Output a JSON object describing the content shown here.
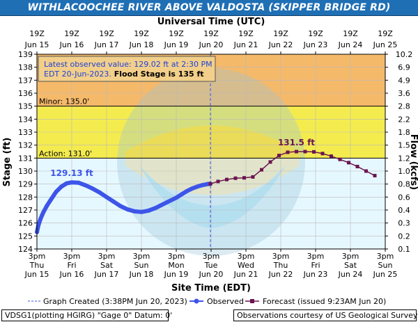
{
  "page_title": "WITHLACOOCHEE RIVER ABOVE VALDOSTA (SKIPPER BRIDGE RD)",
  "footer": {
    "station": "VDSG1(plotting HGIRG) \"Gage 0\" Datum: 0'",
    "credit": "Observations courtesy of US Geological Survey"
  },
  "colors": {
    "title_bg": "#1f6fb5",
    "moderate_band": "#f5b96a",
    "minor_band": "#f4ec4f",
    "normal_band": "#e6f8ff",
    "observed": "#3d55e8",
    "forecast": "#6b1451",
    "created_line": "#3d55e8"
  },
  "chart_data": {
    "type": "line",
    "title": "WITHLACOOCHEE RIVER ABOVE VALDOSTA (SKIPPER BRIDGE RD)",
    "top_axis_title": "Universal Time (UTC)",
    "xlabel": "Site Time (EDT)",
    "ylabel": "Stage (ft)",
    "y2label": "Flow (kcfs)",
    "ylim": [
      124,
      139
    ],
    "xlim": [
      0,
      10
    ],
    "grid": true,
    "bottom_ticks": [
      {
        "x": 0,
        "l1": "3pm",
        "l2": "Thu",
        "l3": "Jun 15"
      },
      {
        "x": 1,
        "l1": "3pm",
        "l2": "Fri",
        "l3": "Jun 16"
      },
      {
        "x": 2,
        "l1": "3pm",
        "l2": "Sat",
        "l3": "Jun 17"
      },
      {
        "x": 3,
        "l1": "3pm",
        "l2": "Sun",
        "l3": "Jun 18"
      },
      {
        "x": 4,
        "l1": "3pm",
        "l2": "Mon",
        "l3": "Jun 19"
      },
      {
        "x": 5,
        "l1": "3pm",
        "l2": "Tue",
        "l3": "Jun 20"
      },
      {
        "x": 6,
        "l1": "3pm",
        "l2": "Wed",
        "l3": "Jun 21"
      },
      {
        "x": 7,
        "l1": "3pm",
        "l2": "Thu",
        "l3": "Jun 22"
      },
      {
        "x": 8,
        "l1": "3pm",
        "l2": "Fri",
        "l3": "Jun 23"
      },
      {
        "x": 9,
        "l1": "3pm",
        "l2": "Sat",
        "l3": "Jun 24"
      },
      {
        "x": 10,
        "l1": "3pm",
        "l2": "Sun",
        "l3": "Jun 25"
      }
    ],
    "top_ticks": [
      {
        "x": 0,
        "l1": "19Z",
        "l2": "Jun 15"
      },
      {
        "x": 1,
        "l1": "19Z",
        "l2": "Jun 16"
      },
      {
        "x": 2,
        "l1": "19Z",
        "l2": "Jun 17"
      },
      {
        "x": 3,
        "l1": "19Z",
        "l2": "Jun 18"
      },
      {
        "x": 4,
        "l1": "19Z",
        "l2": "Jun 19"
      },
      {
        "x": 5,
        "l1": "19Z",
        "l2": "Jun 20"
      },
      {
        "x": 6,
        "l1": "19Z",
        "l2": "Jun 21"
      },
      {
        "x": 7,
        "l1": "19Z",
        "l2": "Jun 22"
      },
      {
        "x": 8,
        "l1": "19Z",
        "l2": "Jun 23"
      },
      {
        "x": 9,
        "l1": "19Z",
        "l2": "Jun 24"
      },
      {
        "x": 10,
        "l1": "19Z",
        "l2": "Jun 25"
      }
    ],
    "stage_ticks": [
      124,
      125,
      126,
      127,
      128,
      129,
      130,
      131,
      132,
      133,
      134,
      135,
      136,
      137,
      138,
      139
    ],
    "flow_ticks": [
      {
        "stage": 124,
        "label": "0.1"
      },
      {
        "stage": 125,
        "label": "0.2"
      },
      {
        "stage": 126,
        "label": "0.3"
      },
      {
        "stage": 127,
        "label": "0.4"
      },
      {
        "stage": 128,
        "label": "0.6"
      },
      {
        "stage": 129,
        "label": "0.8"
      },
      {
        "stage": 130,
        "label": "1.0"
      },
      {
        "stage": 131,
        "label": "1.2"
      },
      {
        "stage": 132,
        "label": "1.5"
      },
      {
        "stage": 133,
        "label": "1.8"
      },
      {
        "stage": 134,
        "label": "2.2"
      },
      {
        "stage": 135,
        "label": "2.8"
      },
      {
        "stage": 136,
        "label": "3.6"
      },
      {
        "stage": 137,
        "label": "4.9"
      },
      {
        "stage": 138,
        "label": "6.9"
      },
      {
        "stage": 139,
        "label": "10.2"
      }
    ],
    "bands": [
      {
        "name": "moderate",
        "from": 135,
        "to": 139
      },
      {
        "name": "minor",
        "from": 131,
        "to": 135
      },
      {
        "name": "normal",
        "from": 124,
        "to": 131
      }
    ],
    "flood_lines": [
      {
        "label": "Minor: 135.0'",
        "stage": 135
      },
      {
        "label": "Action: 131.0'",
        "stage": 131
      }
    ],
    "info_box": {
      "line1": "Latest observed value: 129.02 ft at 2:30 PM",
      "line2": "EDT 20-Jun-2023.",
      "line2_bold": " Flood Stage is 135 ft"
    },
    "annotations": [
      {
        "label": "129.13 ft",
        "series": "Observed"
      },
      {
        "label": "131.5 ft",
        "series": "Forecast"
      }
    ],
    "observed": {
      "name": "Observed",
      "x": [
        0,
        0.04,
        0.1,
        0.18,
        0.28,
        0.4,
        0.55,
        0.7,
        0.85,
        1.0,
        1.2,
        1.4,
        1.6,
        1.8,
        2.0,
        2.2,
        2.4,
        2.6,
        2.8,
        3.0,
        3.2,
        3.4,
        3.55,
        3.7,
        3.85,
        4.0,
        4.15,
        4.3,
        4.45,
        4.6,
        4.75,
        4.9,
        4.98
      ],
      "y": [
        125.3,
        125.8,
        126.3,
        126.8,
        127.3,
        127.8,
        128.4,
        128.8,
        129.05,
        129.13,
        129.1,
        128.9,
        128.65,
        128.35,
        128.0,
        127.65,
        127.3,
        127.05,
        126.9,
        126.85,
        126.95,
        127.15,
        127.35,
        127.55,
        127.75,
        127.95,
        128.2,
        128.45,
        128.65,
        128.8,
        128.92,
        129.0,
        129.02
      ]
    },
    "forecast": {
      "name": "Forecast (issued 9:23AM Jun 20)",
      "x": [
        4.98,
        5.2,
        5.45,
        5.7,
        5.95,
        6.2,
        6.45,
        6.7,
        6.95,
        7.2,
        7.45,
        7.7,
        7.95,
        8.2,
        8.45,
        8.7,
        8.95,
        9.2,
        9.45,
        9.7
      ],
      "y": [
        129.02,
        129.2,
        129.35,
        129.45,
        129.48,
        129.55,
        130.1,
        130.7,
        131.2,
        131.45,
        131.5,
        131.5,
        131.48,
        131.35,
        131.15,
        130.9,
        130.65,
        130.35,
        130.0,
        129.65
      ]
    },
    "created_marker": {
      "x": 4.98
    },
    "legend": {
      "placement": "bottom",
      "created": "Graph Created (3:38PM Jun 20, 2023)",
      "observed": "Observed",
      "forecast": "Forecast (issued 9:23AM Jun 20)"
    }
  }
}
